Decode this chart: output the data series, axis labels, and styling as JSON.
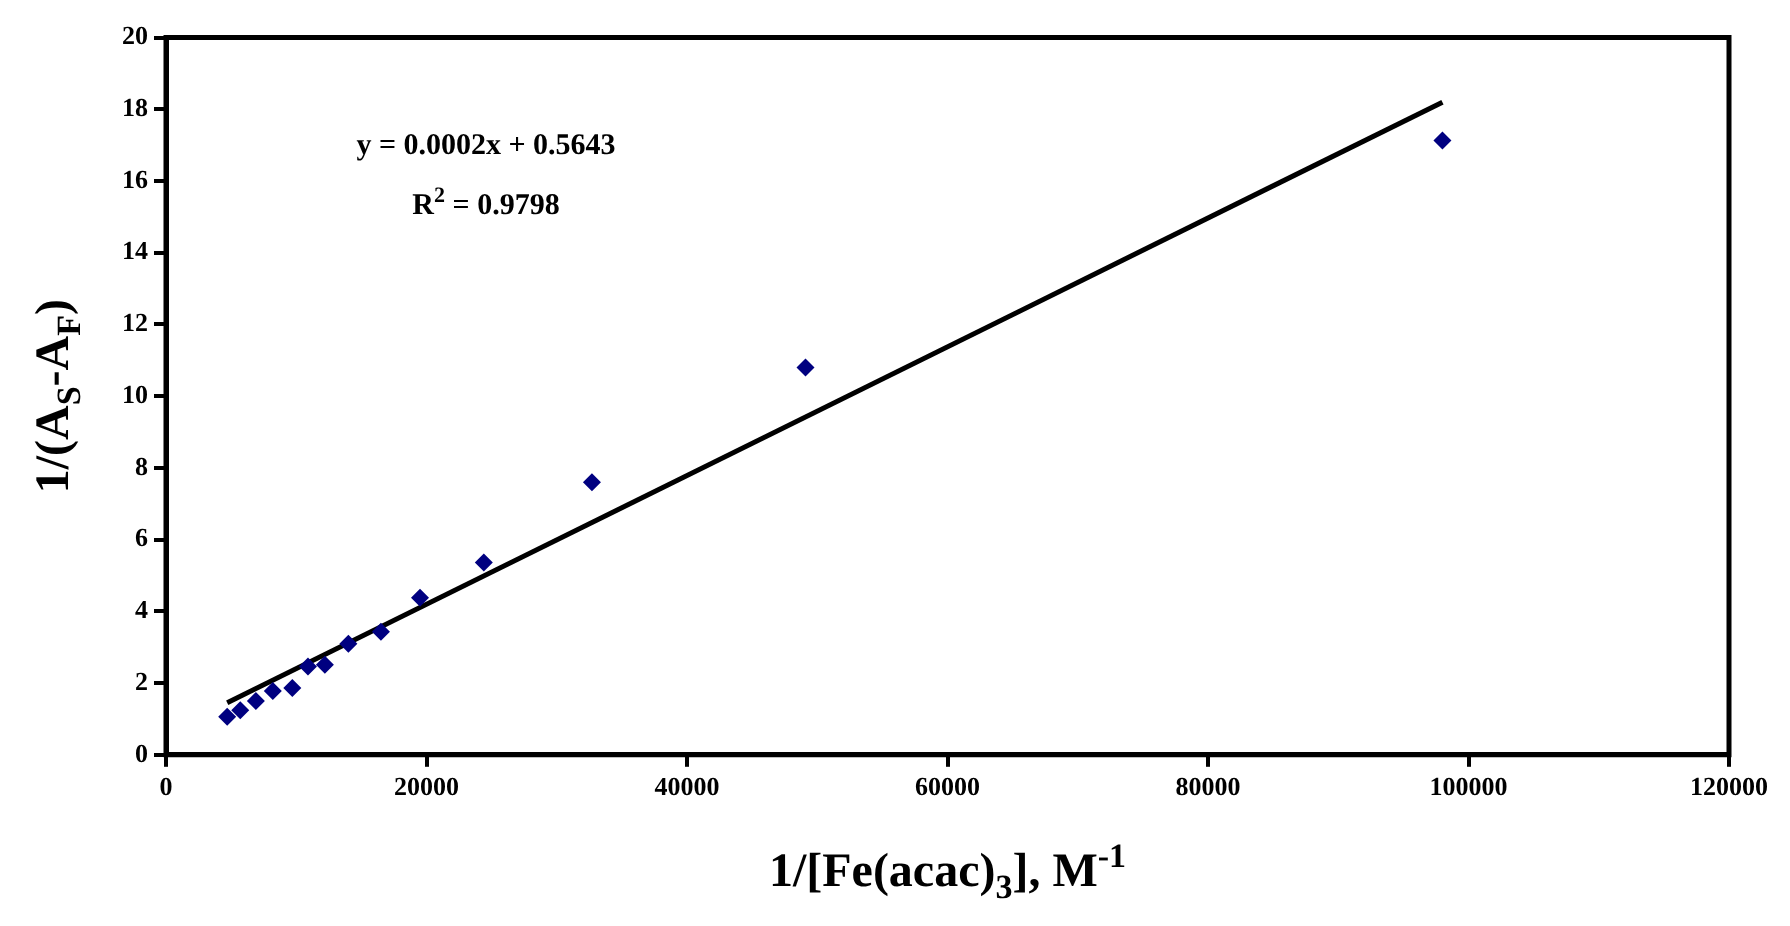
{
  "chart_data": {
    "type": "scatter",
    "xlabel": "1/[Fe(acac)$_{3}$], M$^{-1}$",
    "ylabel": "1/(A$_{S}$-A$_{F}$)",
    "marker": "diamond",
    "xlim": [
      0,
      120000
    ],
    "xticks": [
      0,
      20000,
      40000,
      60000,
      80000,
      100000,
      120000
    ],
    "ylim": [
      0,
      20
    ],
    "yticks": [
      0,
      2,
      4,
      6,
      8,
      10,
      12,
      14,
      16,
      18,
      20
    ],
    "series": [
      {
        "type": "scatter",
        "color": "#000080",
        "x": [
          4700,
          5700,
          6900,
          8200,
          9700,
          10900,
          12200,
          14000,
          16500,
          19500,
          24400,
          32700,
          49100,
          98000
        ],
        "values": [
          1.06,
          1.24,
          1.5,
          1.78,
          1.86,
          2.46,
          2.51,
          3.1,
          3.43,
          4.38,
          5.36,
          7.6,
          10.8,
          17.13
        ]
      },
      {
        "type": "line",
        "color": "#000000",
        "marker": "none",
        "x": [
          4700,
          98000
        ],
        "values": [
          1.45,
          18.2
        ]
      }
    ],
    "annotations": [
      "y = 0.0002x + 0.5643",
      "R$^{2}$ = 0.9798"
    ]
  }
}
